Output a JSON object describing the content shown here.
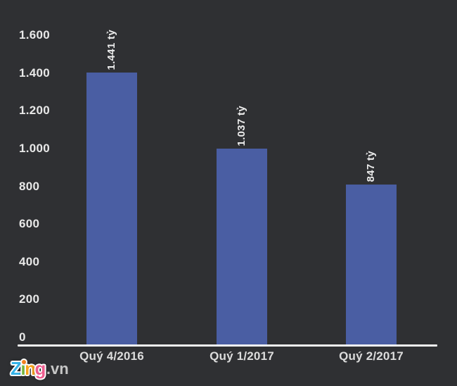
{
  "chart_data": {
    "type": "bar",
    "title": "",
    "categories": [
      "Quý 4/2016",
      "Quý 1/2017",
      "Quý 2/2017"
    ],
    "values": [
      1441,
      1037,
      847
    ],
    "bar_labels": [
      "1.441 tỷ",
      "1.037 tỷ",
      "847 tỷ"
    ],
    "unit": "tỷ",
    "ylim": [
      0,
      1600
    ],
    "ytick_values": [
      0,
      200,
      400,
      600,
      800,
      1000,
      1200,
      1400,
      1600
    ],
    "ytick_labels": [
      "0",
      "200",
      "400",
      "600",
      "800",
      "1.000",
      "1.200",
      "1.400",
      "1.600"
    ],
    "grid": false,
    "legend": false,
    "bar_color": "#4a5ea3",
    "background_color": "#2f3033",
    "axis_line_color": "#f2f2f2",
    "ytick_color": "#e8e8e8",
    "xtick_color": "#dcdcdc",
    "value_label_color": "#ededed"
  },
  "watermark": {
    "brand": "Zing",
    "suffix": ".vn",
    "suffix_color": "#c6c6c6",
    "letters": [
      {
        "char": "Z",
        "color": "#35b3e8"
      },
      {
        "char": "i",
        "color": "#7dc242",
        "dot_color": "#f58220"
      },
      {
        "char": "n",
        "color": "#f9a31b"
      },
      {
        "char": "g",
        "color": "#ee5d8f"
      }
    ]
  }
}
